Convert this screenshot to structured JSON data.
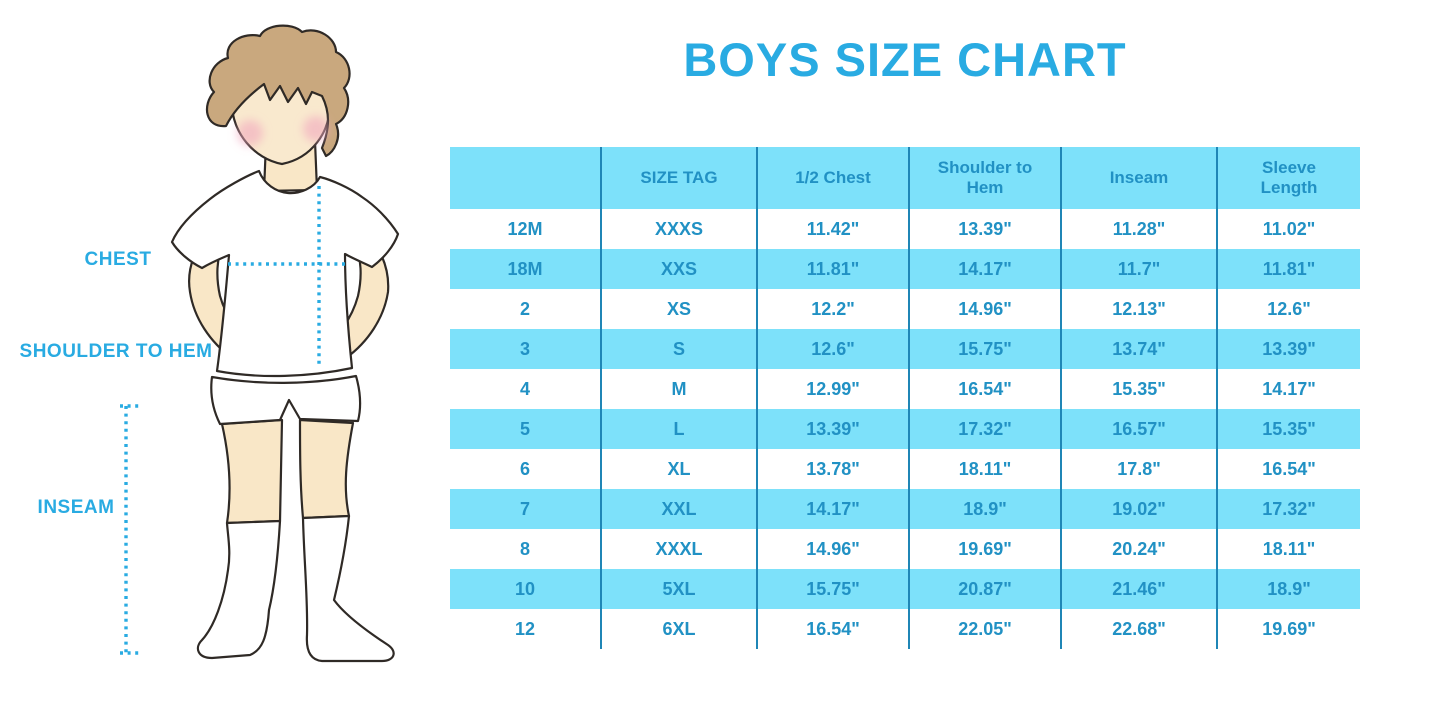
{
  "title": {
    "text": "BOYS SIZE CHART",
    "color": "#29ABE2"
  },
  "figure": {
    "labels": {
      "chest": "CHEST",
      "shoulder_to_hem": "SHOULDER TO HEM",
      "inseam": "INSEAM"
    },
    "icons": [
      "boy-illustration",
      "chest-dotted-measure-line",
      "shoulder-to-hem-dotted-measure-line",
      "inseam-dotted-measure-line"
    ],
    "colors": {
      "measure_line": "#29ABE2",
      "skin": "#F9E7C7",
      "hair": "#C9A87E",
      "blush": "#F2A9BE",
      "outline": "#2F2A26",
      "clothes": "#FFFFFF"
    }
  },
  "chart_data": {
    "type": "table",
    "title": "BOYS SIZE CHART",
    "columns": [
      "",
      "SIZE TAG",
      "1/2 Chest",
      "Shoulder to Hem",
      "Inseam",
      "Sleeve Length"
    ],
    "rows": [
      [
        "12M",
        "XXXS",
        "11.42\"",
        "13.39\"",
        "11.28\"",
        "11.02\""
      ],
      [
        "18M",
        "XXS",
        "11.81\"",
        "14.17\"",
        "11.7\"",
        "11.81\""
      ],
      [
        "2",
        "XS",
        "12.2\"",
        "14.96\"",
        "12.13\"",
        "12.6\""
      ],
      [
        "3",
        "S",
        "12.6\"",
        "15.75\"",
        "13.74\"",
        "13.39\""
      ],
      [
        "4",
        "M",
        "12.99\"",
        "16.54\"",
        "15.35\"",
        "14.17\""
      ],
      [
        "5",
        "L",
        "13.39\"",
        "17.32\"",
        "16.57\"",
        "15.35\""
      ],
      [
        "6",
        "XL",
        "13.78\"",
        "18.11\"",
        "17.8\"",
        "16.54\""
      ],
      [
        "7",
        "XXL",
        "14.17\"",
        "18.9\"",
        "19.02\"",
        "17.32\""
      ],
      [
        "8",
        "XXXL",
        "14.96\"",
        "19.69\"",
        "20.24\"",
        "18.11\""
      ],
      [
        "10",
        "5XL",
        "15.75\"",
        "20.87\"",
        "21.46\"",
        "18.9\""
      ],
      [
        "12",
        "6XL",
        "16.54\"",
        "22.05\"",
        "22.68\"",
        "19.69\""
      ]
    ],
    "layout": {
      "header_bg": "#7DE1FA",
      "stripe_bg": "#7DE1FA",
      "plain_row_bg": "#FFFFFF",
      "text_color": "#2191C4",
      "divider_color": "#1F86B6",
      "striping": "header cyan, body rows alternate white/cyan starting white"
    }
  }
}
